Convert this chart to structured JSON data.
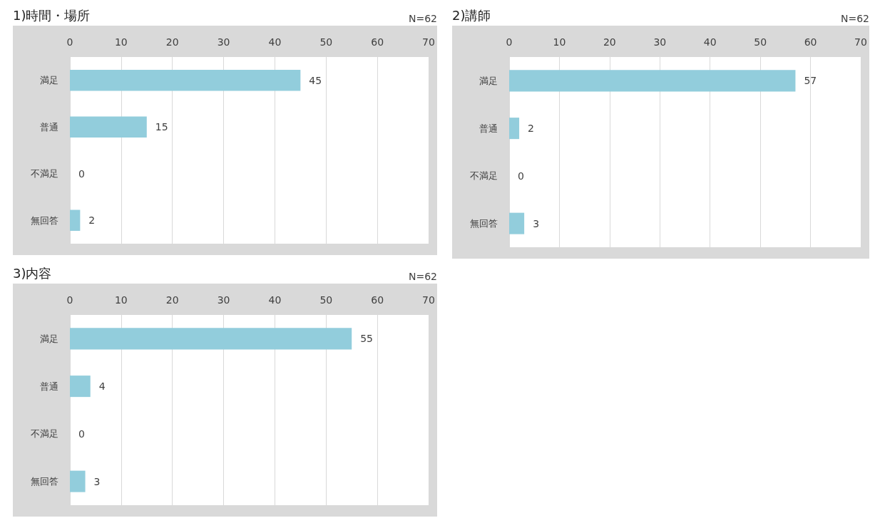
{
  "chart_data": [
    {
      "type": "bar",
      "title": "1)時間・場所",
      "annotations": [
        "N=62"
      ],
      "orientation": "horizontal",
      "categories": [
        "満足",
        "普通",
        "不満足",
        "無回答"
      ],
      "values": [
        45,
        15,
        0,
        2
      ],
      "color": "#92cddc",
      "xlim": [
        0,
        70
      ],
      "xticks": [
        0,
        10,
        20,
        30,
        40,
        50,
        60,
        70
      ],
      "grid": "x",
      "data_labels": true
    },
    {
      "type": "bar",
      "title": "2)講師",
      "annotations": [
        "N=62"
      ],
      "orientation": "horizontal",
      "categories": [
        "満足",
        "普通",
        "不満足",
        "無回答"
      ],
      "values": [
        57,
        2,
        0,
        3
      ],
      "color": "#92cddc",
      "xlim": [
        0,
        70
      ],
      "xticks": [
        0,
        10,
        20,
        30,
        40,
        50,
        60,
        70
      ],
      "grid": "x",
      "data_labels": true
    },
    {
      "type": "bar",
      "title": "3)内容",
      "annotations": [
        "N=62"
      ],
      "orientation": "horizontal",
      "categories": [
        "満足",
        "普通",
        "不満足",
        "無回答"
      ],
      "values": [
        55,
        4,
        0,
        3
      ],
      "color": "#92cddc",
      "xlim": [
        0,
        70
      ],
      "xticks": [
        0,
        10,
        20,
        30,
        40,
        50,
        60,
        70
      ],
      "grid": "x",
      "data_labels": true
    }
  ]
}
